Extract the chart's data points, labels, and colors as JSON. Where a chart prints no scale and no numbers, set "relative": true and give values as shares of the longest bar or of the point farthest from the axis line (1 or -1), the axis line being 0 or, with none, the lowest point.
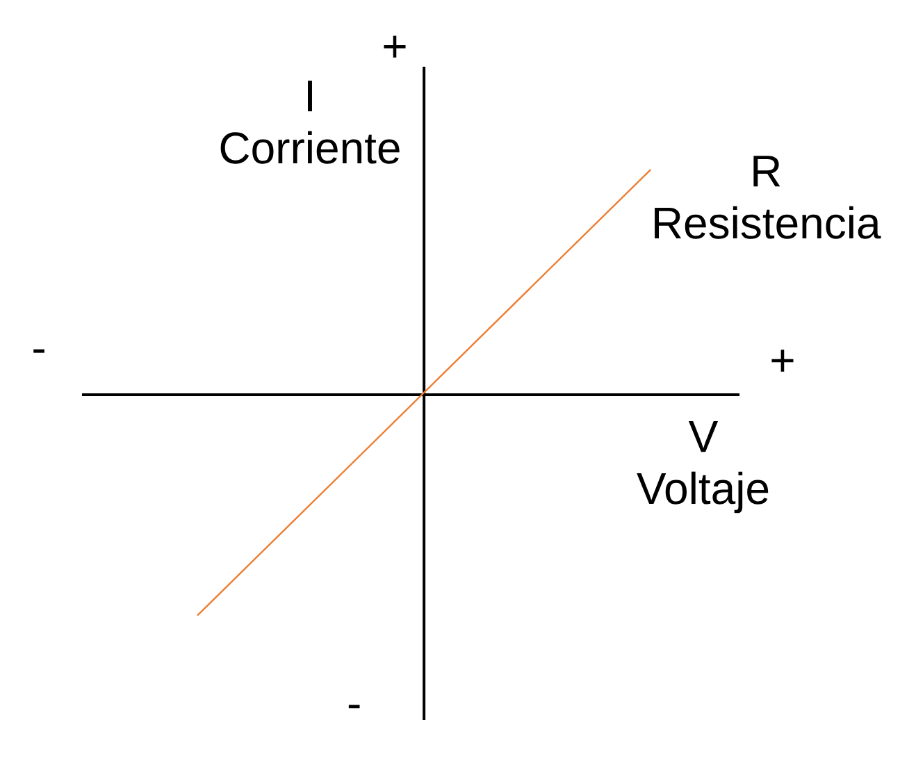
{
  "chart_data": {
    "type": "line",
    "relative": true,
    "categories": [
      null,
      null
    ],
    "series": [
      {
        "name": "R Resistencia",
        "color": "#ed7d31",
        "values": [
          -0.98,
          1
        ]
      }
    ],
    "xlabel": "V Voltaje",
    "ylabel": "I Corriente",
    "annotations": [
      "+",
      "-",
      "+",
      "-"
    ]
  }
}
